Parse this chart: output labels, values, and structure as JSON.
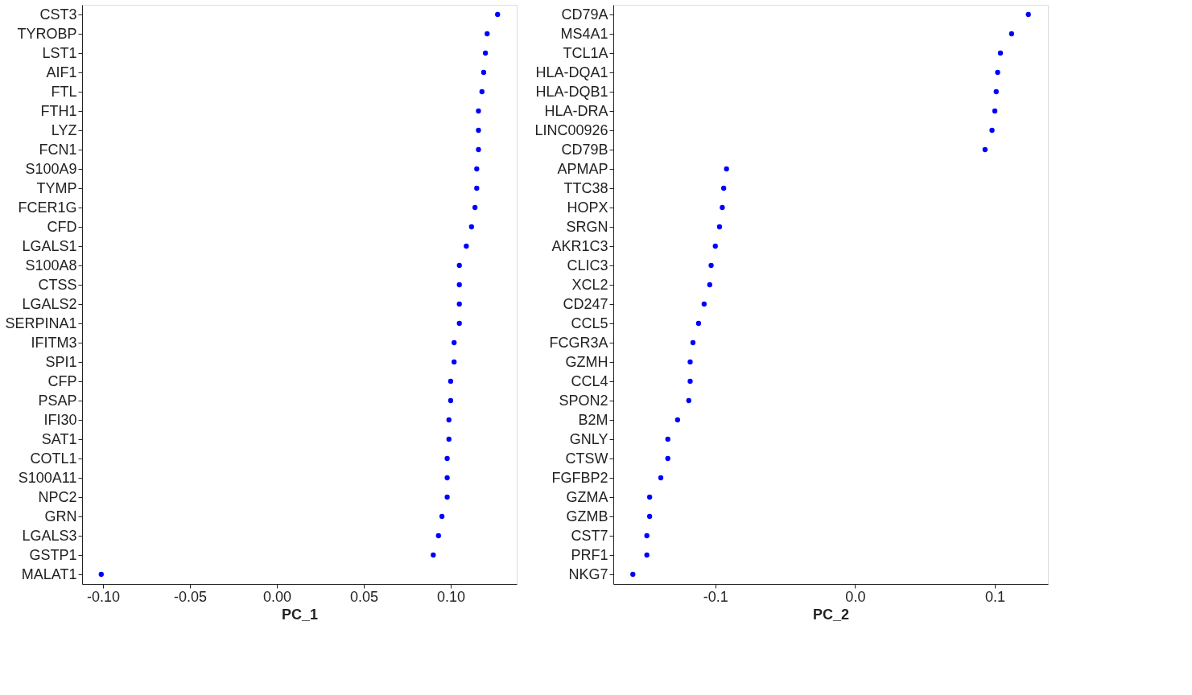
{
  "chart_data": [
    {
      "type": "scatter",
      "orientation": "horizontal",
      "xlabel": "PC_1",
      "marker": "circle",
      "grid": false,
      "categories": [
        "CST3",
        "TYROBP",
        "LST1",
        "AIF1",
        "FTL",
        "FTH1",
        "LYZ",
        "FCN1",
        "S100A9",
        "TYMP",
        "FCER1G",
        "CFD",
        "LGALS1",
        "S100A8",
        "CTSS",
        "LGALS2",
        "SERPINA1",
        "IFITM3",
        "SPI1",
        "CFP",
        "PSAP",
        "IFI30",
        "SAT1",
        "COTL1",
        "S100A11",
        "NPC2",
        "GRN",
        "LGALS3",
        "GSTP1",
        "MALAT1"
      ],
      "series": [
        {
          "color": "#0000ff",
          "values": [
            0.127,
            0.121,
            0.12,
            0.119,
            0.118,
            0.116,
            0.116,
            0.116,
            0.115,
            0.115,
            0.114,
            0.112,
            0.109,
            0.105,
            0.105,
            0.105,
            0.105,
            0.102,
            0.102,
            0.1,
            0.1,
            0.099,
            0.099,
            0.098,
            0.098,
            0.098,
            0.095,
            0.093,
            0.09,
            -0.101
          ]
        }
      ],
      "xlim": [
        -0.112,
        0.138
      ],
      "xticks": [
        {
          "value": -0.1,
          "label": "-0.10"
        },
        {
          "value": -0.05,
          "label": "-0.05"
        },
        {
          "value": 0,
          "label": "0.00"
        },
        {
          "value": 0.05,
          "label": "0.05"
        },
        {
          "value": 0.1,
          "label": "0.10"
        }
      ]
    },
    {
      "type": "scatter",
      "orientation": "horizontal",
      "xlabel": "PC_2",
      "marker": "circle",
      "grid": false,
      "categories": [
        "CD79A",
        "MS4A1",
        "TCL1A",
        "HLA-DQA1",
        "HLA-DQB1",
        "HLA-DRA",
        "LINC00926",
        "CD79B",
        "APMAP",
        "TTC38",
        "HOPX",
        "SRGN",
        "AKR1C3",
        "CLIC3",
        "XCL2",
        "CD247",
        "CCL5",
        "FCGR3A",
        "GZMH",
        "CCL4",
        "SPON2",
        "B2M",
        "GNLY",
        "CTSW",
        "FGFBP2",
        "GZMA",
        "GZMB",
        "CST7",
        "PRF1",
        "NKG7"
      ],
      "series": [
        {
          "color": "#0000ff",
          "values": [
            0.124,
            0.112,
            0.104,
            0.102,
            0.101,
            0.1,
            0.098,
            0.093,
            -0.092,
            -0.094,
            -0.095,
            -0.097,
            -0.1,
            -0.103,
            -0.104,
            -0.108,
            -0.112,
            -0.116,
            -0.118,
            -0.118,
            -0.119,
            -0.127,
            -0.134,
            -0.134,
            -0.139,
            -0.147,
            -0.147,
            -0.149,
            -0.149,
            -0.159
          ]
        }
      ],
      "xlim": [
        -0.173,
        0.138
      ],
      "xticks": [
        {
          "value": -0.1,
          "label": "-0.1"
        },
        {
          "value": 0,
          "label": "0.0"
        },
        {
          "value": 0.1,
          "label": "0.1"
        }
      ]
    }
  ]
}
